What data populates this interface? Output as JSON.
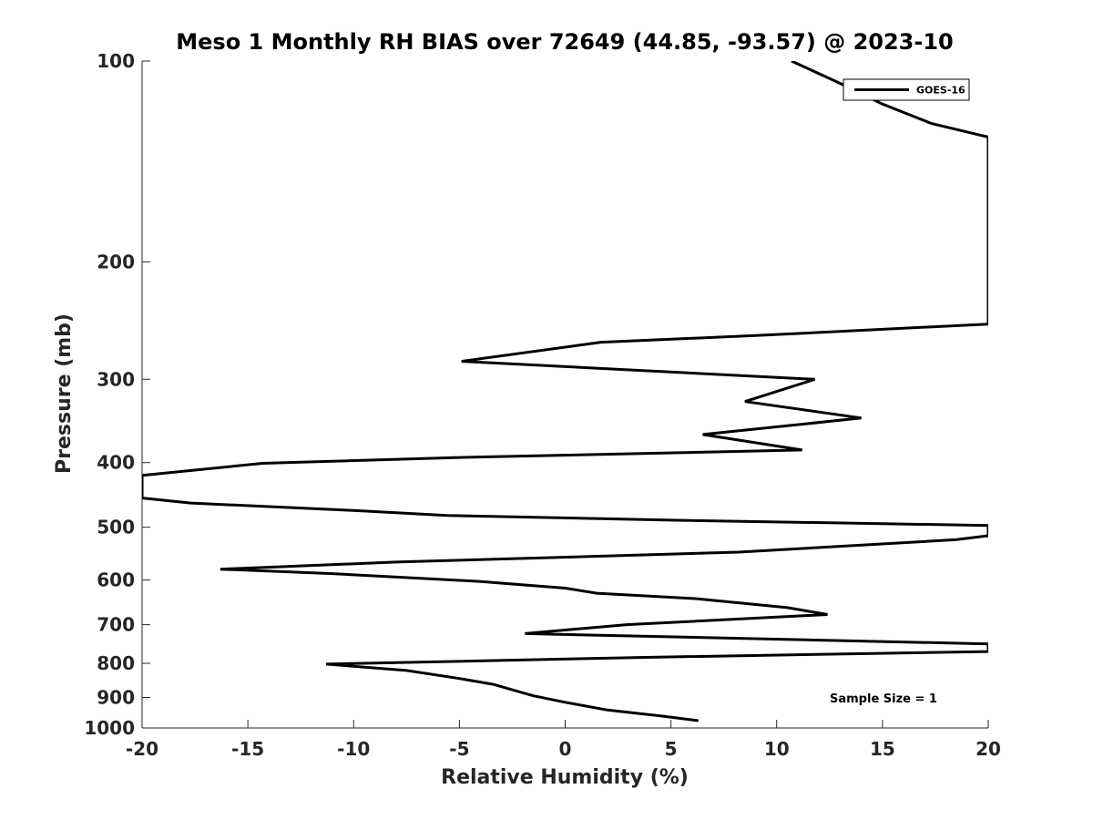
{
  "chart_data": {
    "type": "line",
    "title": "Meso 1 Monthly RH BIAS over 72649 (44.85, -93.57) @ 2023-10",
    "xlabel": "Relative Humidity (%)",
    "ylabel": "Pressure (mb)",
    "xlim": [
      -20,
      20
    ],
    "ylim": [
      100,
      1000
    ],
    "y_scale": "log",
    "y_reversed": true,
    "grid": false,
    "legend_position": "top-right",
    "x_ticks": [
      "-20",
      "-15",
      "-10",
      "-5",
      "0",
      "5",
      "10",
      "15",
      "20"
    ],
    "y_ticks": [
      "100",
      "200",
      "300",
      "400",
      "500",
      "600",
      "700",
      "800",
      "900",
      "1000"
    ],
    "series": [
      {
        "name": "GOES-16",
        "color": "#000000",
        "points": [
          {
            "x": 6.3,
            "p": 975
          },
          {
            "x": 4.6,
            "p": 960
          },
          {
            "x": 2.0,
            "p": 940
          },
          {
            "x": 0.0,
            "p": 915
          },
          {
            "x": -1.5,
            "p": 895
          },
          {
            "x": -2.3,
            "p": 880
          },
          {
            "x": -3.4,
            "p": 860
          },
          {
            "x": -5.0,
            "p": 843
          },
          {
            "x": -7.5,
            "p": 820
          },
          {
            "x": -11.3,
            "p": 802
          },
          {
            "x": 3.5,
            "p": 784
          },
          {
            "x": 20.0,
            "p": 768
          },
          {
            "x": 20.0,
            "p": 748
          },
          {
            "x": -1.9,
            "p": 722
          },
          {
            "x": 2.9,
            "p": 700
          },
          {
            "x": 12.4,
            "p": 676
          },
          {
            "x": 10.5,
            "p": 660
          },
          {
            "x": 6.2,
            "p": 640
          },
          {
            "x": 1.5,
            "p": 628
          },
          {
            "x": 0.0,
            "p": 617
          },
          {
            "x": -4.0,
            "p": 603
          },
          {
            "x": -11.0,
            "p": 587
          },
          {
            "x": -16.3,
            "p": 578
          },
          {
            "x": -8.0,
            "p": 564
          },
          {
            "x": 8.2,
            "p": 545
          },
          {
            "x": 18.5,
            "p": 522
          },
          {
            "x": 20.0,
            "p": 515
          },
          {
            "x": 20.0,
            "p": 497
          },
          {
            "x": 5.0,
            "p": 488
          },
          {
            "x": -5.6,
            "p": 480
          },
          {
            "x": -10.0,
            "p": 472
          },
          {
            "x": -17.7,
            "p": 460
          },
          {
            "x": -20.0,
            "p": 452
          },
          {
            "x": -20.0,
            "p": 418
          },
          {
            "x": -14.3,
            "p": 401
          },
          {
            "x": -5.0,
            "p": 393
          },
          {
            "x": 11.2,
            "p": 383
          },
          {
            "x": 6.5,
            "p": 363
          },
          {
            "x": 14.0,
            "p": 343
          },
          {
            "x": 8.5,
            "p": 324
          },
          {
            "x": 11.8,
            "p": 300
          },
          {
            "x": -4.9,
            "p": 282
          },
          {
            "x": 1.7,
            "p": 264
          },
          {
            "x": 9.0,
            "p": 258
          },
          {
            "x": 20.0,
            "p": 248
          },
          {
            "x": 20.0,
            "p": 130
          },
          {
            "x": 17.3,
            "p": 124
          },
          {
            "x": 15.0,
            "p": 116
          },
          {
            "x": 13.0,
            "p": 108
          },
          {
            "x": 10.7,
            "p": 100
          }
        ]
      }
    ],
    "annotation": "Sample Size = 1"
  }
}
